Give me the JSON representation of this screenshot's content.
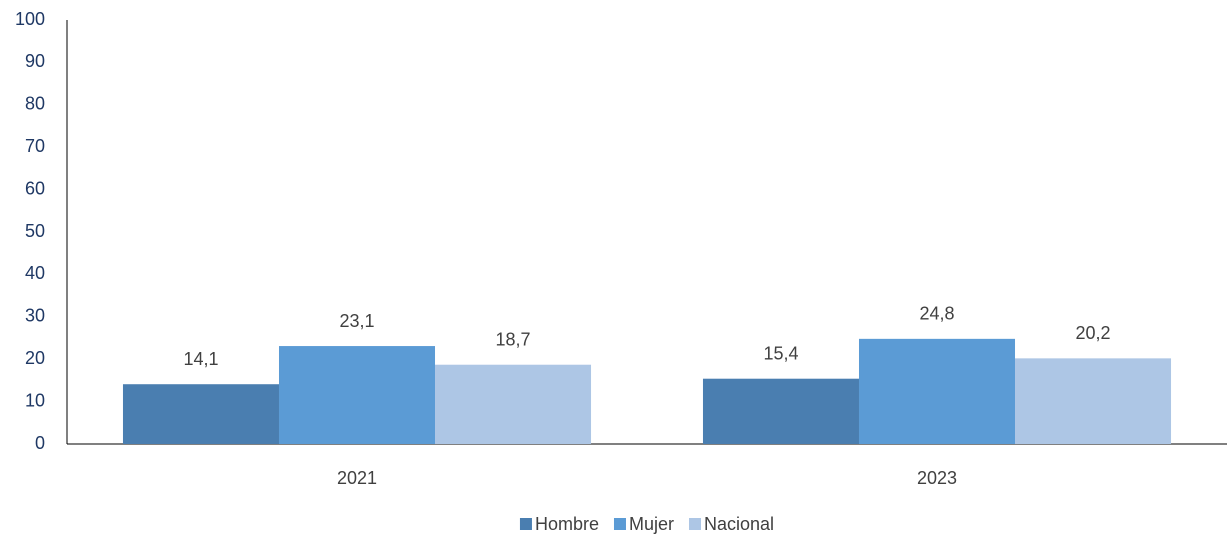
{
  "chart_data": {
    "type": "bar",
    "categories": [
      "2021",
      "2023"
    ],
    "series": [
      {
        "name": "Hombre",
        "color": "#4a7eb0",
        "values": [
          14.1,
          15.4
        ],
        "value_labels": [
          "14,1",
          "15,4"
        ]
      },
      {
        "name": "Mujer",
        "color": "#5b9bd5",
        "values": [
          23.1,
          24.8
        ],
        "value_labels": [
          "23,1",
          "24,8"
        ]
      },
      {
        "name": "Nacional",
        "color": "#adc6e5",
        "values": [
          18.7,
          20.2
        ],
        "value_labels": [
          "18,7",
          "20,2"
        ]
      }
    ],
    "ylim": [
      0,
      100
    ],
    "yticks": [
      0,
      10,
      20,
      30,
      40,
      50,
      60,
      70,
      80,
      90,
      100
    ],
    "grid": false,
    "legend": "bottom"
  }
}
